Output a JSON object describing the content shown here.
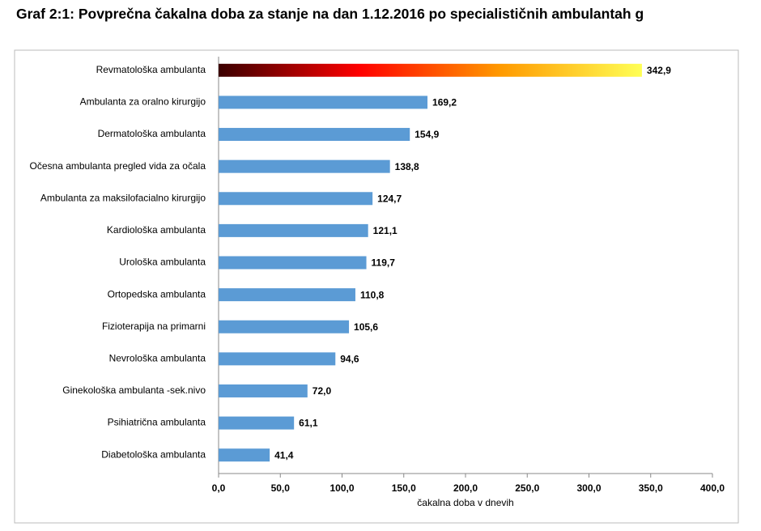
{
  "chart_data": {
    "type": "barh",
    "title": "Graf 2:1: Povprečna čakalna doba za stanje na dan 1.12.2016 po specialističnih ambulantah g",
    "xlabel": "čakalna doba v dnevih",
    "categories": [
      "Revmatološka ambulanta",
      "Ambulanta za oralno kirurgijo",
      "Dermatološka ambulanta",
      "Očesna ambulanta  pregled vida za očala",
      "Ambulanta za maksilofacialno kirurgijo",
      "Kardiološka ambulanta",
      "Urološka ambulanta",
      "Ortopedska ambulanta",
      "Fizioterapija na primarni",
      "Nevrološka ambulanta",
      "Ginekološka ambulanta -sek.nivo",
      "Psihiatrična ambulanta",
      "Diabetološka ambulanta"
    ],
    "values": [
      342.9,
      169.2,
      154.9,
      138.8,
      124.7,
      121.1,
      119.7,
      110.8,
      105.6,
      94.6,
      72.0,
      61.1,
      41.4
    ],
    "value_labels": [
      "342,9",
      "169,2",
      "154,9",
      "138,8",
      "124,7",
      "121,1",
      "119,7",
      "110,8",
      "105,6",
      "94,6",
      "72,0",
      "61,1",
      "41,4"
    ],
    "color": "#5b9bd5",
    "gradient": [
      "#3a0000",
      "#ff0000",
      "#ff9a00",
      "#ffff55"
    ],
    "xlim": [
      0,
      400
    ],
    "xticks": [
      {
        "value": 0,
        "label": "0,0"
      },
      {
        "value": 50,
        "label": "50,0"
      },
      {
        "value": 100,
        "label": "100,0"
      },
      {
        "value": 150,
        "label": "150,0"
      },
      {
        "value": 200,
        "label": "200,0"
      },
      {
        "value": 250,
        "label": "250,0"
      },
      {
        "value": 300,
        "label": "300,0"
      },
      {
        "value": 350,
        "label": "350,0"
      },
      {
        "value": 400,
        "label": "400,0"
      }
    ]
  }
}
